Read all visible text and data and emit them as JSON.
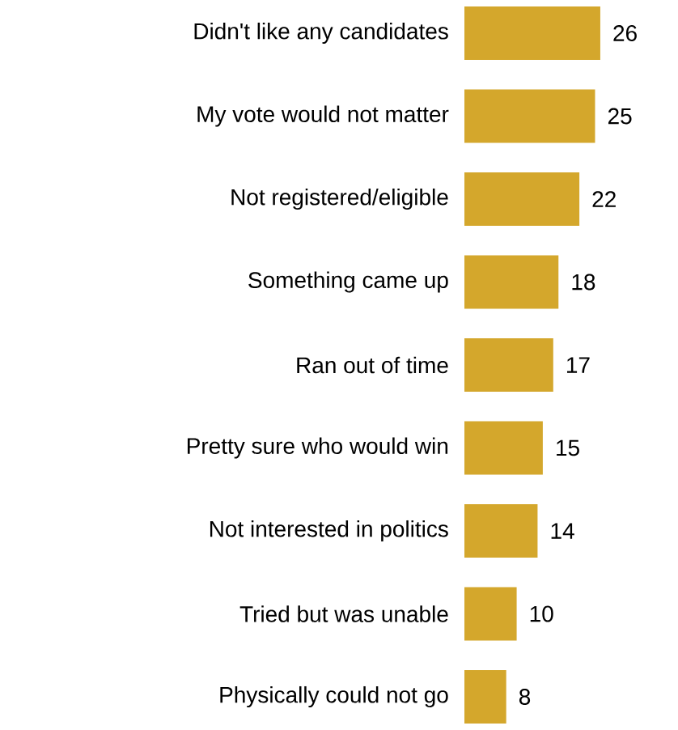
{
  "chart_data": {
    "type": "bar",
    "orientation": "horizontal",
    "categories": [
      "Didn't like any candidates",
      "My vote would not matter",
      "Not registered/eligible",
      "Something came up",
      "Ran out of time",
      "Pretty sure who would win",
      "Not interested in politics",
      "Tried but was unable",
      "Physically could not go"
    ],
    "values": [
      26,
      25,
      22,
      18,
      17,
      15,
      14,
      10,
      8
    ],
    "color": "#d4a72c",
    "data_labels": true
  }
}
